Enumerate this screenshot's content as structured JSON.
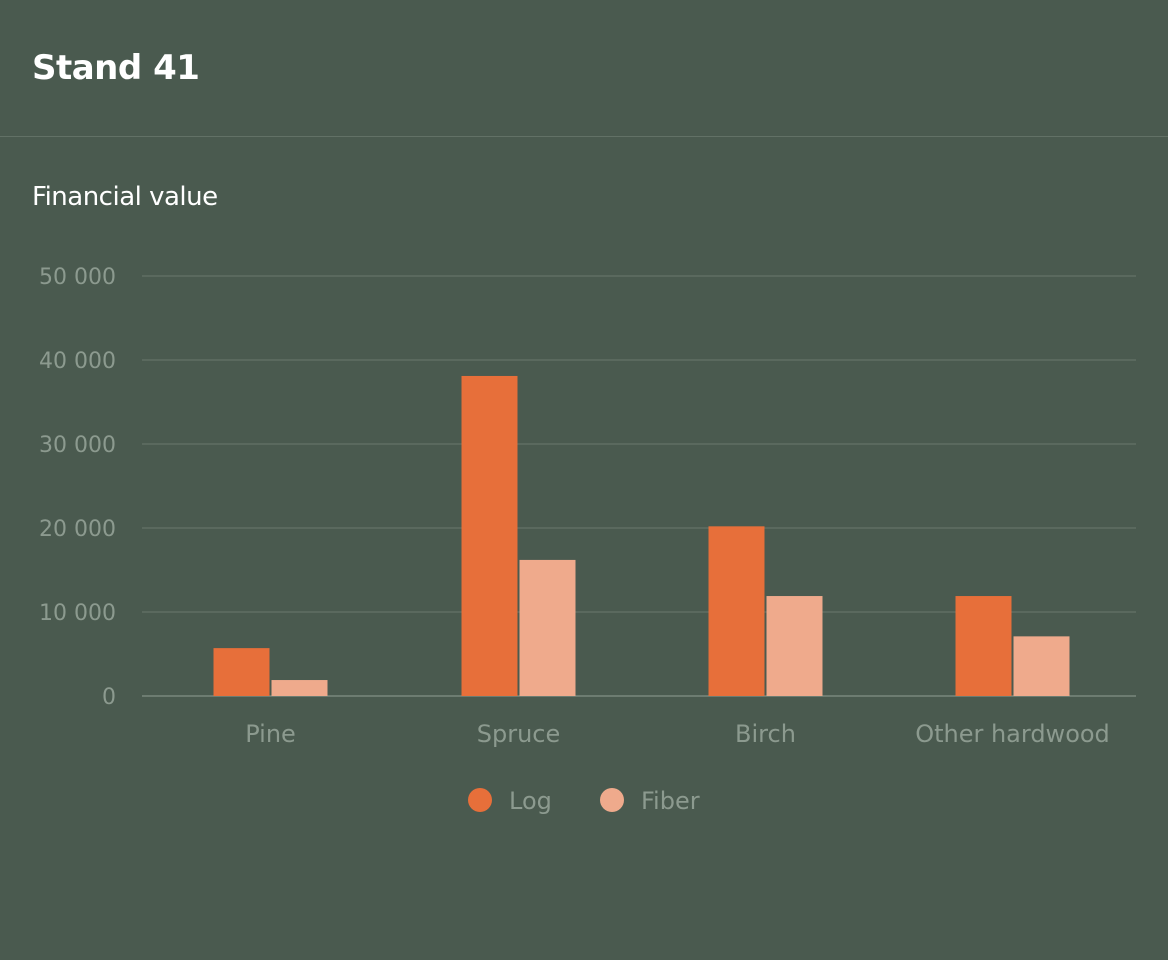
{
  "header": {
    "title": "Stand 41"
  },
  "section": {
    "title": "Financial value"
  },
  "chart_data": {
    "type": "bar",
    "title": "Financial value",
    "categories": [
      "Pine",
      "Spruce",
      "Birch",
      "Other hardwood"
    ],
    "series": [
      {
        "name": "Log",
        "color": "#e76f3a",
        "values": [
          5700,
          38100,
          20200,
          11900
        ]
      },
      {
        "name": "Fiber",
        "color": "#efaa8c",
        "values": [
          1900,
          16200,
          11900,
          7100
        ]
      }
    ],
    "yticks": [
      0,
      10000,
      20000,
      30000,
      40000,
      50000
    ],
    "ytick_labels": [
      "0",
      "10 000",
      "20 000",
      "30 000",
      "40 000",
      "50 000"
    ],
    "ylim": [
      0,
      50000
    ],
    "grid": true,
    "legend": "bottom-center"
  }
}
